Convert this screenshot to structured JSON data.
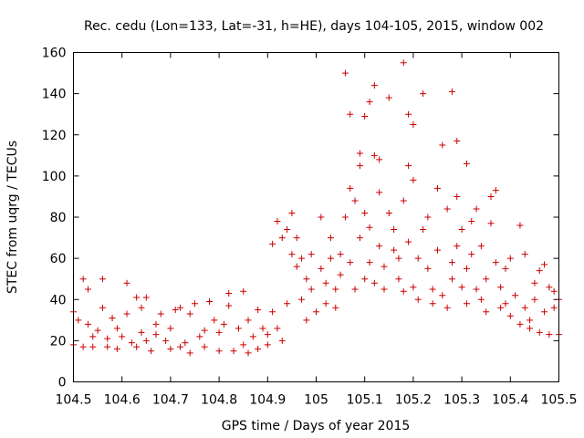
{
  "chart_data": {
    "type": "scatter",
    "title": "Rec. cedu (Lon=133, Lat=-31, h=HE), days 104-105, 2015, window 002",
    "xlabel": "GPS time / Days of year 2015",
    "ylabel": "STEC from uqrg / TECUs",
    "xlim": [
      104.5,
      105.5
    ],
    "ylim": [
      0,
      160
    ],
    "xticks": [
      "104.5",
      "104.6",
      "104.7",
      "104.8",
      "104.9",
      "105",
      "105.1",
      "105.2",
      "105.3",
      "105.4",
      "105.5"
    ],
    "yticks": [
      "0",
      "20",
      "40",
      "60",
      "80",
      "100",
      "120",
      "140",
      "160"
    ],
    "grid": false,
    "marker": "plus",
    "color": "#cc0000",
    "points": [
      [
        104.5,
        34
      ],
      [
        104.5,
        18
      ],
      [
        104.51,
        30
      ],
      [
        104.52,
        50
      ],
      [
        104.52,
        17
      ],
      [
        104.53,
        28
      ],
      [
        104.53,
        45
      ],
      [
        104.54,
        22
      ],
      [
        104.54,
        17
      ],
      [
        104.55,
        25
      ],
      [
        104.56,
        50
      ],
      [
        104.56,
        36
      ],
      [
        104.57,
        17
      ],
      [
        104.57,
        21
      ],
      [
        104.58,
        31
      ],
      [
        104.59,
        26
      ],
      [
        104.59,
        16
      ],
      [
        104.6,
        22
      ],
      [
        104.61,
        48
      ],
      [
        104.61,
        33
      ],
      [
        104.62,
        19
      ],
      [
        104.63,
        41
      ],
      [
        104.63,
        17
      ],
      [
        104.64,
        24
      ],
      [
        104.64,
        36
      ],
      [
        104.65,
        41
      ],
      [
        104.65,
        20
      ],
      [
        104.66,
        15
      ],
      [
        104.67,
        28
      ],
      [
        104.67,
        23
      ],
      [
        104.68,
        33
      ],
      [
        104.69,
        20
      ],
      [
        104.7,
        16
      ],
      [
        104.7,
        26
      ],
      [
        104.71,
        35
      ],
      [
        104.72,
        36
      ],
      [
        104.72,
        17
      ],
      [
        104.73,
        19
      ],
      [
        104.74,
        33
      ],
      [
        104.74,
        14
      ],
      [
        104.75,
        38
      ],
      [
        104.76,
        22
      ],
      [
        104.77,
        25
      ],
      [
        104.77,
        17
      ],
      [
        104.78,
        39
      ],
      [
        104.79,
        30
      ],
      [
        104.8,
        24
      ],
      [
        104.8,
        15
      ],
      [
        104.81,
        28
      ],
      [
        104.82,
        37
      ],
      [
        104.82,
        43
      ],
      [
        104.83,
        15
      ],
      [
        104.84,
        26
      ],
      [
        104.85,
        18
      ],
      [
        104.85,
        44
      ],
      [
        104.86,
        14
      ],
      [
        104.86,
        30
      ],
      [
        104.87,
        22
      ],
      [
        104.88,
        16
      ],
      [
        104.88,
        35
      ],
      [
        104.89,
        26
      ],
      [
        104.9,
        18
      ],
      [
        104.9,
        23
      ],
      [
        104.91,
        34
      ],
      [
        104.91,
        67
      ],
      [
        104.92,
        78
      ],
      [
        104.92,
        26
      ],
      [
        104.93,
        20
      ],
      [
        104.93,
        70
      ],
      [
        104.94,
        74
      ],
      [
        104.94,
        38
      ],
      [
        104.95,
        82
      ],
      [
        104.95,
        62
      ],
      [
        104.96,
        70
      ],
      [
        104.96,
        56
      ],
      [
        104.97,
        60
      ],
      [
        104.97,
        40
      ],
      [
        104.98,
        50
      ],
      [
        104.98,
        30
      ],
      [
        104.99,
        62
      ],
      [
        104.99,
        45
      ],
      [
        105.0,
        34
      ],
      [
        105.01,
        80
      ],
      [
        105.01,
        55
      ],
      [
        105.02,
        48
      ],
      [
        105.02,
        38
      ],
      [
        105.03,
        60
      ],
      [
        105.03,
        70
      ],
      [
        105.04,
        45
      ],
      [
        105.04,
        36
      ],
      [
        105.05,
        62
      ],
      [
        105.05,
        52
      ],
      [
        105.06,
        150
      ],
      [
        105.06,
        80
      ],
      [
        105.07,
        94
      ],
      [
        105.07,
        130
      ],
      [
        105.07,
        58
      ],
      [
        105.08,
        88
      ],
      [
        105.08,
        45
      ],
      [
        105.09,
        111
      ],
      [
        105.09,
        105
      ],
      [
        105.09,
        70
      ],
      [
        105.1,
        129
      ],
      [
        105.1,
        50
      ],
      [
        105.1,
        82
      ],
      [
        105.11,
        136
      ],
      [
        105.11,
        75
      ],
      [
        105.11,
        58
      ],
      [
        105.12,
        144
      ],
      [
        105.12,
        110
      ],
      [
        105.12,
        48
      ],
      [
        105.13,
        92
      ],
      [
        105.13,
        66
      ],
      [
        105.13,
        108
      ],
      [
        105.14,
        56
      ],
      [
        105.14,
        45
      ],
      [
        105.15,
        138
      ],
      [
        105.15,
        82
      ],
      [
        105.16,
        64
      ],
      [
        105.16,
        74
      ],
      [
        105.17,
        50
      ],
      [
        105.17,
        60
      ],
      [
        105.18,
        155
      ],
      [
        105.18,
        88
      ],
      [
        105.18,
        44
      ],
      [
        105.19,
        130
      ],
      [
        105.19,
        68
      ],
      [
        105.19,
        105
      ],
      [
        105.2,
        125
      ],
      [
        105.2,
        98
      ],
      [
        105.2,
        46
      ],
      [
        105.21,
        60
      ],
      [
        105.21,
        40
      ],
      [
        105.22,
        140
      ],
      [
        105.22,
        74
      ],
      [
        105.23,
        55
      ],
      [
        105.23,
        80
      ],
      [
        105.24,
        45
      ],
      [
        105.24,
        38
      ],
      [
        105.25,
        94
      ],
      [
        105.25,
        64
      ],
      [
        105.26,
        115
      ],
      [
        105.26,
        42
      ],
      [
        105.27,
        84
      ],
      [
        105.27,
        36
      ],
      [
        105.28,
        141
      ],
      [
        105.28,
        58
      ],
      [
        105.28,
        50
      ],
      [
        105.29,
        117
      ],
      [
        105.29,
        66
      ],
      [
        105.29,
        90
      ],
      [
        105.3,
        46
      ],
      [
        105.3,
        74
      ],
      [
        105.31,
        55
      ],
      [
        105.31,
        106
      ],
      [
        105.31,
        38
      ],
      [
        105.32,
        78
      ],
      [
        105.32,
        62
      ],
      [
        105.33,
        84
      ],
      [
        105.33,
        45
      ],
      [
        105.34,
        66
      ],
      [
        105.34,
        40
      ],
      [
        105.35,
        50
      ],
      [
        105.35,
        34
      ],
      [
        105.36,
        90
      ],
      [
        105.36,
        77
      ],
      [
        105.37,
        93
      ],
      [
        105.37,
        58
      ],
      [
        105.38,
        46
      ],
      [
        105.38,
        36
      ],
      [
        105.39,
        38
      ],
      [
        105.39,
        55
      ],
      [
        105.4,
        32
      ],
      [
        105.4,
        60
      ],
      [
        105.41,
        42
      ],
      [
        105.42,
        76
      ],
      [
        105.42,
        28
      ],
      [
        105.43,
        36
      ],
      [
        105.43,
        62
      ],
      [
        105.44,
        30
      ],
      [
        105.44,
        26
      ],
      [
        105.45,
        40
      ],
      [
        105.45,
        48
      ],
      [
        105.46,
        24
      ],
      [
        105.46,
        54
      ],
      [
        105.47,
        34
      ],
      [
        105.47,
        57
      ],
      [
        105.48,
        23
      ],
      [
        105.48,
        46
      ],
      [
        105.49,
        44
      ],
      [
        105.49,
        36
      ],
      [
        105.5,
        40
      ],
      [
        105.5,
        23
      ]
    ]
  }
}
